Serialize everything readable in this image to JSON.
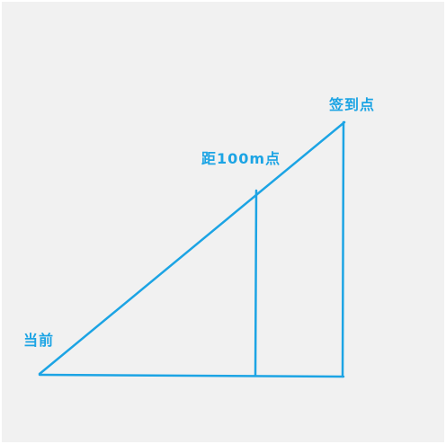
{
  "labels": {
    "start": "当前",
    "checkpoint": "距100m点",
    "destination": "签到点"
  },
  "colors": {
    "stroke": "#1ca4e4",
    "text": "#1ca4e4",
    "background": "#f1f1f1"
  }
}
